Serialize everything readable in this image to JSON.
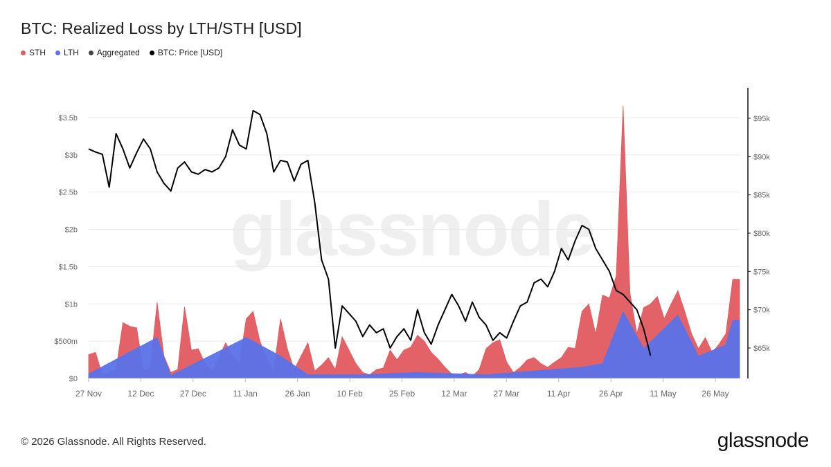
{
  "header": {
    "title": "BTC: Realized Loss by LTH/STH [USD]"
  },
  "legend": [
    {
      "label": "STH",
      "color": "#e05a5f"
    },
    {
      "label": "LTH",
      "color": "#5b72e8"
    },
    {
      "label": "Aggregated",
      "color": "#444444"
    },
    {
      "label": "BTC: Price [USD]",
      "color": "#000000"
    }
  ],
  "watermark": "glassnode",
  "footer": {
    "copyright": "© 2026 Glassnode. All Rights Reserved.",
    "logo": "glassnode"
  },
  "chart_data": {
    "type": "area",
    "title": "BTC: Realized Loss by LTH/STH [USD]",
    "x_ticks": [
      "27 Nov",
      "12 Dec",
      "27 Dec",
      "11 Jan",
      "26 Jan",
      "10 Feb",
      "25 Feb",
      "12 Mar",
      "27 Mar",
      "11 Apr",
      "26 Apr",
      "11 May",
      "26 May"
    ],
    "y_left": {
      "min": 0,
      "max": 3.5,
      "ticks": [
        0,
        0.5,
        1,
        1.5,
        2,
        2.5,
        3,
        3.5
      ],
      "tick_labels": [
        "$0",
        "$500m",
        "$1b",
        "$1.5b",
        "$2b",
        "$2.5b",
        "$3b",
        "$3.5b"
      ],
      "unit": "USD billions"
    },
    "y_right": {
      "min": 60,
      "max": 99,
      "ticks": [
        65,
        70,
        75,
        80,
        85,
        90,
        95
      ],
      "tick_labels": [
        "$65k",
        "$70k",
        "$75k",
        "$80k",
        "$85k",
        "$90k",
        "$95k"
      ],
      "unit": "USD thousands"
    },
    "grid": true,
    "legend_position": "top-left",
    "x_index_range": [
      0,
      190
    ],
    "series": [
      {
        "name": "STH",
        "color": "#e05a5f",
        "axis": "left",
        "points": [
          [
            0,
            0.32
          ],
          [
            2,
            0.35
          ],
          [
            4,
            0.05
          ],
          [
            6,
            0.08
          ],
          [
            8,
            0.12
          ],
          [
            10,
            0.75
          ],
          [
            12,
            0.7
          ],
          [
            14,
            0.68
          ],
          [
            16,
            0.1
          ],
          [
            18,
            0.15
          ],
          [
            20,
            1.02
          ],
          [
            22,
            0.3
          ],
          [
            24,
            0.08
          ],
          [
            26,
            0.12
          ],
          [
            28,
            0.96
          ],
          [
            30,
            0.38
          ],
          [
            32,
            0.4
          ],
          [
            34,
            0.2
          ],
          [
            36,
            0.1
          ],
          [
            38,
            0.28
          ],
          [
            40,
            0.48
          ],
          [
            42,
            0.3
          ],
          [
            44,
            0.2
          ],
          [
            46,
            0.8
          ],
          [
            48,
            0.9
          ],
          [
            50,
            0.5
          ],
          [
            52,
            0.25
          ],
          [
            54,
            0.1
          ],
          [
            56,
            0.8
          ],
          [
            58,
            0.4
          ],
          [
            60,
            0.12
          ],
          [
            62,
            0.3
          ],
          [
            64,
            0.48
          ],
          [
            66,
            0.1
          ],
          [
            68,
            0.18
          ],
          [
            70,
            0.28
          ],
          [
            72,
            0.12
          ],
          [
            74,
            0.56
          ],
          [
            76,
            0.38
          ],
          [
            78,
            0.2
          ],
          [
            80,
            0.08
          ],
          [
            82,
            0.05
          ],
          [
            84,
            0.12
          ],
          [
            86,
            0.14
          ],
          [
            88,
            0.38
          ],
          [
            90,
            0.25
          ],
          [
            92,
            0.38
          ],
          [
            94,
            0.42
          ],
          [
            96,
            0.58
          ],
          [
            98,
            0.5
          ],
          [
            100,
            0.35
          ],
          [
            102,
            0.26
          ],
          [
            104,
            0.15
          ],
          [
            106,
            0.06
          ],
          [
            108,
            0.05
          ],
          [
            110,
            0.08
          ],
          [
            112,
            0.03
          ],
          [
            114,
            0.12
          ],
          [
            116,
            0.4
          ],
          [
            118,
            0.48
          ],
          [
            120,
            0.52
          ],
          [
            122,
            0.22
          ],
          [
            124,
            0.08
          ],
          [
            126,
            0.15
          ],
          [
            128,
            0.25
          ],
          [
            130,
            0.28
          ],
          [
            132,
            0.2
          ],
          [
            134,
            0.15
          ],
          [
            136,
            0.22
          ],
          [
            138,
            0.28
          ],
          [
            140,
            0.42
          ],
          [
            142,
            0.4
          ],
          [
            144,
            0.9
          ],
          [
            146,
            1.0
          ],
          [
            148,
            0.6
          ],
          [
            150,
            1.12
          ],
          [
            152,
            1.08
          ],
          [
            154,
            1.38
          ],
          [
            156,
            3.66
          ],
          [
            158,
            1.15
          ],
          [
            160,
            0.6
          ],
          [
            162,
            0.95
          ],
          [
            164,
            1.0
          ],
          [
            166,
            1.1
          ],
          [
            168,
            0.8
          ],
          [
            170,
            1.0
          ],
          [
            172,
            1.18
          ],
          [
            174,
            0.9
          ],
          [
            176,
            0.6
          ],
          [
            178,
            0.4
          ],
          [
            180,
            0.55
          ],
          [
            182,
            0.35
          ],
          [
            184,
            0.46
          ],
          [
            186,
            0.6
          ],
          [
            188,
            1.33
          ],
          [
            190,
            1.33
          ]
        ]
      },
      {
        "name": "LTH",
        "color": "#5b72e8",
        "axis": "left",
        "points": [
          [
            0,
            0.06
          ],
          [
            20,
            0.55
          ],
          [
            24,
            0.04
          ],
          [
            46,
            0.55
          ],
          [
            56,
            0.3
          ],
          [
            64,
            0.05
          ],
          [
            80,
            0.05
          ],
          [
            96,
            0.08
          ],
          [
            116,
            0.05
          ],
          [
            144,
            0.15
          ],
          [
            150,
            0.2
          ],
          [
            156,
            0.9
          ],
          [
            162,
            0.4
          ],
          [
            172,
            0.85
          ],
          [
            178,
            0.3
          ],
          [
            186,
            0.45
          ],
          [
            188,
            0.78
          ],
          [
            190,
            0.78
          ]
        ]
      },
      {
        "name": "Aggregated",
        "color": "#444444",
        "axis": "left",
        "points": []
      },
      {
        "name": "BTC: Price [USD]",
        "color": "#000000",
        "axis": "right",
        "points": [
          [
            0,
            91.0
          ],
          [
            2,
            90.6
          ],
          [
            4,
            90.3
          ],
          [
            6,
            86.0
          ],
          [
            8,
            93.0
          ],
          [
            10,
            91.0
          ],
          [
            12,
            88.5
          ],
          [
            14,
            90.5
          ],
          [
            16,
            92.3
          ],
          [
            18,
            91.0
          ],
          [
            20,
            88.0
          ],
          [
            22,
            86.5
          ],
          [
            24,
            85.5
          ],
          [
            26,
            88.5
          ],
          [
            28,
            89.3
          ],
          [
            30,
            88.0
          ],
          [
            32,
            87.7
          ],
          [
            34,
            88.3
          ],
          [
            36,
            88.0
          ],
          [
            38,
            88.5
          ],
          [
            40,
            90.0
          ],
          [
            42,
            93.5
          ],
          [
            44,
            91.5
          ],
          [
            46,
            91.0
          ],
          [
            48,
            96.0
          ],
          [
            50,
            95.5
          ],
          [
            52,
            93.0
          ],
          [
            54,
            88.0
          ],
          [
            56,
            89.5
          ],
          [
            58,
            89.3
          ],
          [
            60,
            86.8
          ],
          [
            62,
            89.0
          ],
          [
            64,
            89.5
          ],
          [
            66,
            84.0
          ],
          [
            68,
            76.5
          ],
          [
            70,
            74.0
          ],
          [
            72,
            65.0
          ],
          [
            74,
            70.5
          ],
          [
            76,
            69.5
          ],
          [
            78,
            68.5
          ],
          [
            80,
            66.5
          ],
          [
            82,
            68.0
          ],
          [
            84,
            67.0
          ],
          [
            86,
            67.5
          ],
          [
            88,
            65.0
          ],
          [
            90,
            66.5
          ],
          [
            92,
            67.5
          ],
          [
            94,
            66.0
          ],
          [
            96,
            70.0
          ],
          [
            98,
            67.0
          ],
          [
            100,
            65.5
          ],
          [
            102,
            68.0
          ],
          [
            104,
            70.0
          ],
          [
            106,
            72.0
          ],
          [
            108,
            70.5
          ],
          [
            110,
            68.5
          ],
          [
            112,
            71.0
          ],
          [
            114,
            69.0
          ],
          [
            116,
            68.0
          ],
          [
            118,
            66.0
          ],
          [
            120,
            67.0
          ],
          [
            122,
            66.3
          ],
          [
            124,
            68.5
          ],
          [
            126,
            70.5
          ],
          [
            128,
            71.0
          ],
          [
            130,
            73.5
          ],
          [
            132,
            74.0
          ],
          [
            134,
            73.0
          ],
          [
            136,
            75.0
          ],
          [
            138,
            78.0
          ],
          [
            140,
            76.5
          ],
          [
            142,
            79.0
          ],
          [
            144,
            81.0
          ],
          [
            146,
            80.5
          ],
          [
            148,
            78.0
          ],
          [
            150,
            76.5
          ],
          [
            152,
            75.0
          ],
          [
            154,
            72.5
          ],
          [
            156,
            72.0
          ],
          [
            158,
            71.0
          ],
          [
            160,
            70.0
          ],
          [
            162,
            67.5
          ],
          [
            164,
            64.0
          ]
        ]
      }
    ]
  }
}
